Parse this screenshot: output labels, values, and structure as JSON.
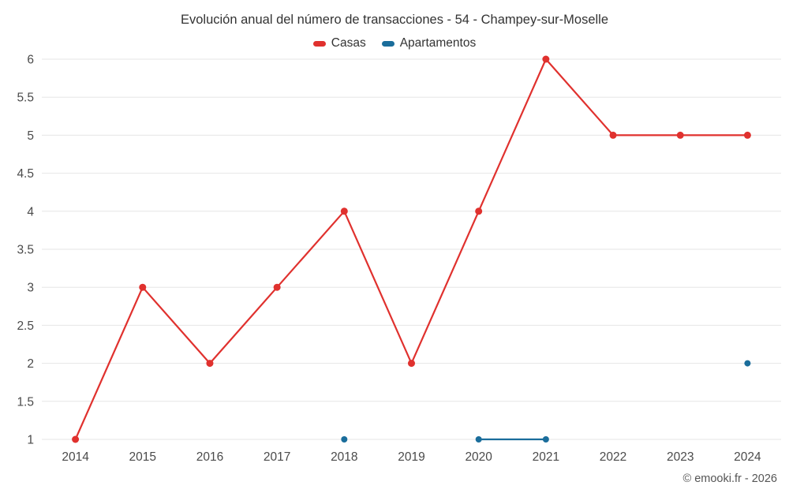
{
  "chart": {
    "title": "Evolución anual del número de transacciones - 54 - Champey-sur-Moselle",
    "copyright": "© emooki.fr - 2026"
  },
  "chart_data": {
    "type": "line",
    "title": "Evolución anual del número de transacciones - 54 - Champey-sur-Moselle",
    "categories": [
      "2014",
      "2015",
      "2016",
      "2017",
      "2018",
      "2019",
      "2020",
      "2021",
      "2022",
      "2023",
      "2024"
    ],
    "series": [
      {
        "name": "Casas",
        "color": "#e0312e",
        "values": [
          1,
          3,
          2,
          3,
          4,
          2,
          4,
          6,
          5,
          5,
          5
        ]
      },
      {
        "name": "Apartamentos",
        "color": "#1a6d9b",
        "values": [
          null,
          null,
          null,
          null,
          1,
          null,
          1,
          1,
          null,
          null,
          2
        ]
      }
    ],
    "xlabel": "",
    "ylabel": "",
    "ylim": [
      1,
      6
    ],
    "ytick_step": 0.5,
    "grid": "horizontal-only",
    "gridline_color": "#e6e6e6",
    "legend_position": "top-center"
  }
}
